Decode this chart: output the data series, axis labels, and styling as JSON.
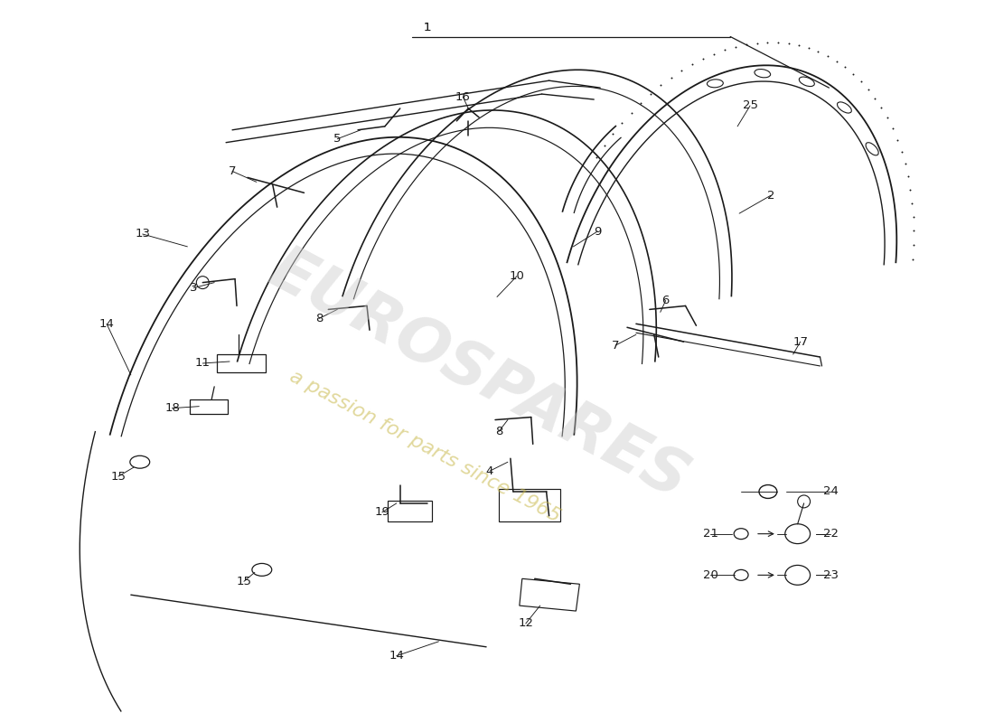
{
  "bg_color": "#ffffff",
  "line_color": "#1a1a1a",
  "wm1": "#cccccc",
  "wm2": "#c8b84a",
  "fs": 9.5,
  "fig_w": 11.0,
  "fig_h": 8.0
}
